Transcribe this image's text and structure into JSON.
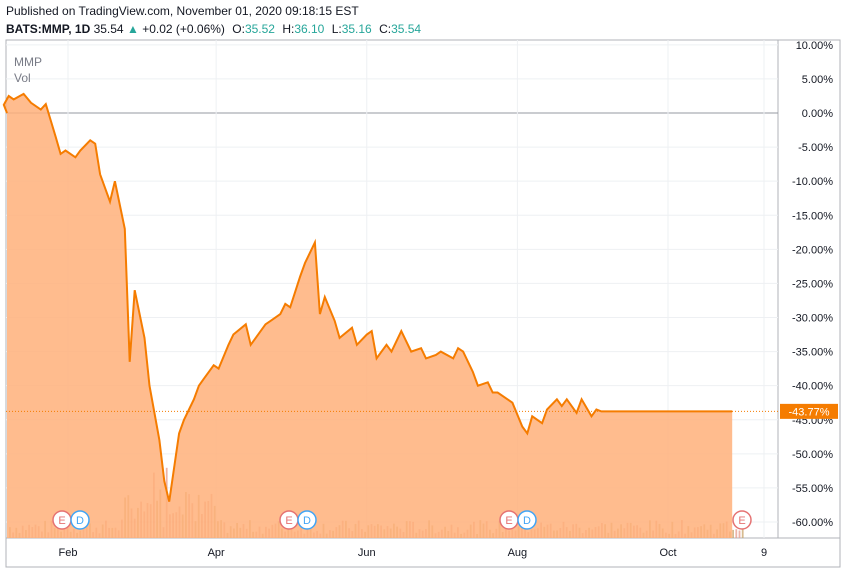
{
  "header": {
    "published": "Published on TradingView.com, November 01, 2020 09:18:15 EST",
    "symbol": "BATS:MMP, 1D",
    "last": "35.54",
    "up_arrow": "▲",
    "change": "+0.02 (+0.06%)",
    "o_label": "O:",
    "o_value": "35.52",
    "h_label": "H:",
    "h_value": "36.10",
    "l_label": "L:",
    "l_value": "35.16",
    "c_label": "C:",
    "c_value": "35.54"
  },
  "legend": {
    "series": "MMP",
    "volume": "Vol"
  },
  "colors": {
    "line": "#f57c00",
    "area": "#ffb07a",
    "up_text": "#26a69a",
    "earnings": "#e57373",
    "dividend": "#42a5f5",
    "badge_bg": "#f57c00"
  },
  "chart_data": {
    "type": "area",
    "title": "",
    "xlabel": "",
    "ylabel": "",
    "x_ticks": [
      "Feb",
      "Apr",
      "Jun",
      "Aug",
      "Oct",
      "9"
    ],
    "y_ticks": [
      "10.00%",
      "5.00%",
      "0.00%",
      "-5.00%",
      "-10.00%",
      "-15.00%",
      "-20.00%",
      "-25.00%",
      "-30.00%",
      "-35.00%",
      "-40.00%",
      "-45.00%",
      "-50.00%",
      "-55.00%",
      "-60.00%"
    ],
    "ylim": [
      -61.5,
      10
    ],
    "last_value_label": "-43.77%",
    "series": [
      {
        "name": "MMP",
        "x": [
          "2020-01-02",
          "2020-01-06",
          "2020-01-08",
          "2020-01-10",
          "2020-01-14",
          "2020-01-17",
          "2020-01-21",
          "2020-01-23",
          "2020-01-27",
          "2020-01-29",
          "2020-01-31",
          "2020-02-04",
          "2020-02-06",
          "2020-02-10",
          "2020-02-12",
          "2020-02-14",
          "2020-02-18",
          "2020-02-20",
          "2020-02-24",
          "2020-02-26",
          "2020-02-28",
          "2020-03-03",
          "2020-03-05",
          "2020-03-09",
          "2020-03-11",
          "2020-03-13",
          "2020-03-17",
          "2020-03-19",
          "2020-03-23",
          "2020-03-25",
          "2020-03-27",
          "2020-03-31",
          "2020-04-02",
          "2020-04-06",
          "2020-04-08",
          "2020-04-13",
          "2020-04-15",
          "2020-04-17",
          "2020-04-21",
          "2020-04-23",
          "2020-04-27",
          "2020-04-29",
          "2020-05-01",
          "2020-05-05",
          "2020-05-07",
          "2020-05-11",
          "2020-05-13",
          "2020-05-15",
          "2020-05-19",
          "2020-05-21",
          "2020-05-26",
          "2020-05-28",
          "2020-06-01",
          "2020-06-03",
          "2020-06-05",
          "2020-06-09",
          "2020-06-11",
          "2020-06-15",
          "2020-06-17",
          "2020-06-19",
          "2020-06-23",
          "2020-06-25",
          "2020-06-29",
          "2020-07-01",
          "2020-07-06",
          "2020-07-08",
          "2020-07-10",
          "2020-07-14",
          "2020-07-16",
          "2020-07-20",
          "2020-07-22",
          "2020-07-24",
          "2020-07-28",
          "2020-07-30",
          "2020-08-03",
          "2020-08-05",
          "2020-08-07",
          "2020-08-11",
          "2020-08-13",
          "2020-08-17",
          "2020-08-19",
          "2020-08-21",
          "2020-08-25",
          "2020-08-27",
          "2020-08-31",
          "2020-09-02",
          "2020-09-04",
          "2020-09-09",
          "2020-09-11",
          "2020-09-15",
          "2020-09-17",
          "2020-09-21",
          "2020-09-23",
          "2020-09-25",
          "2020-09-29",
          "2020-10-01",
          "2020-10-05",
          "2020-10-07",
          "2020-10-09",
          "2020-10-13",
          "2020-10-15",
          "2020-10-19",
          "2020-10-21",
          "2020-10-23",
          "2020-10-27",
          "2020-10-30"
        ],
        "values": [
          0,
          1.2,
          2.5,
          2,
          2.8,
          1.5,
          0.5,
          1.3,
          -3.5,
          -6,
          -5.5,
          -6.5,
          -5.5,
          -4,
          -4.5,
          -9,
          -13,
          -10,
          -17,
          -36.5,
          -26,
          -33,
          -40,
          -48,
          -54,
          -57,
          -47,
          -45,
          -42,
          -40,
          -39,
          -37,
          -37.5,
          -34,
          -32.5,
          -31,
          -34,
          -33,
          -31,
          -30.5,
          -29.5,
          -28,
          -28.5,
          -24,
          -22,
          -19,
          -29.5,
          -27,
          -30.5,
          -33,
          -31.5,
          -34,
          -32.5,
          -32,
          -36,
          -34,
          -35,
          -32,
          -33.5,
          -35,
          -34.5,
          -36,
          -35.5,
          -35,
          -36,
          -34.5,
          -35,
          -38,
          -40,
          -39.5,
          -41,
          -41,
          -42,
          -42.5,
          -46,
          -47,
          -44.5,
          -45.5,
          -43.5,
          -42,
          -43,
          -42,
          -44,
          -42,
          -44.5,
          -43.5,
          -43.77,
          -43.77,
          -43.77,
          -43.77,
          -43.77,
          -43.77,
          -43.77,
          -43.77,
          -43.77,
          -43.77,
          -43.77,
          -43.77,
          -43.77,
          -43.77,
          -43.77,
          -43.77,
          -43.77,
          -43.77,
          -43.77,
          -43.77
        ]
      }
    ],
    "volume_note": "volume bars shown at bottom",
    "event_markers": [
      {
        "type": "E",
        "date": "2020-02-04"
      },
      {
        "type": "D",
        "date": "2020-02-06"
      },
      {
        "type": "E",
        "date": "2020-05-01"
      },
      {
        "type": "D",
        "date": "2020-05-05"
      },
      {
        "type": "E",
        "date": "2020-07-30"
      },
      {
        "type": "D",
        "date": "2020-08-03"
      },
      {
        "type": "E",
        "date": "2020-10-30"
      }
    ]
  }
}
